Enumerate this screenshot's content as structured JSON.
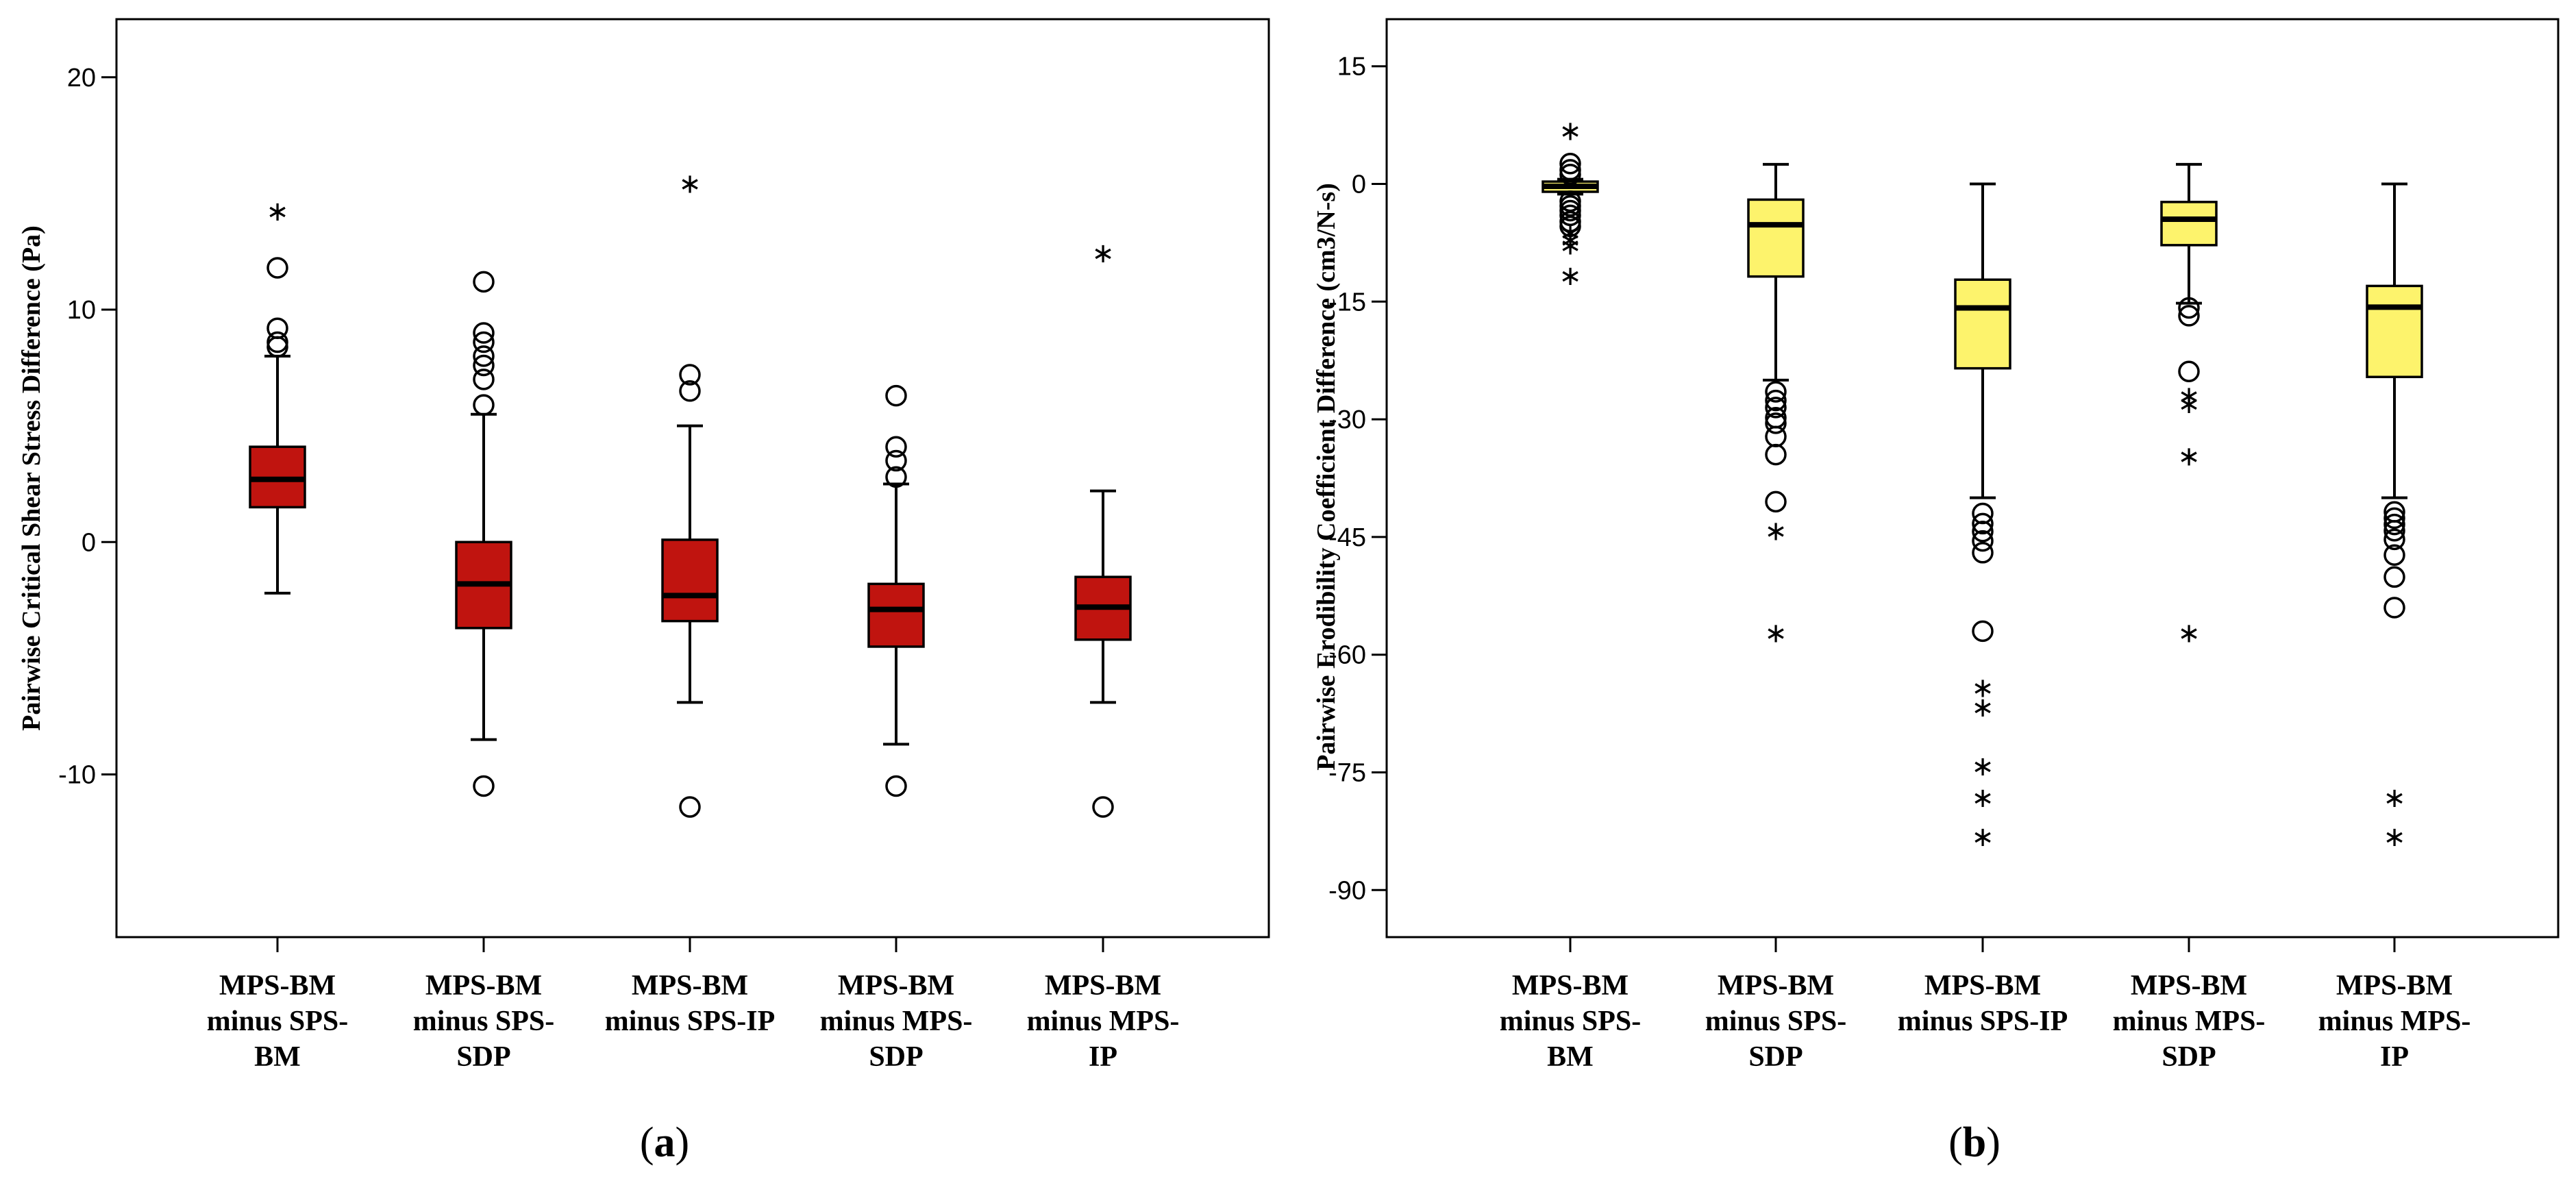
{
  "chart_data": [
    {
      "type": "box",
      "panel_label": "(a)",
      "panel_letter": "a",
      "ylabel": "Pairwise Critical Shear Stress Difference (Pa)",
      "ylim": [
        -17,
        22.5
      ],
      "yticks": [
        20,
        10,
        0,
        -10
      ],
      "ytick_labels": [
        "20",
        "10",
        "0",
        "-10"
      ],
      "box_color": "#c0140f",
      "categories": [
        [
          "MPS-BM",
          "minus SPS-",
          "BM"
        ],
        [
          "MPS-BM",
          "minus SPS-",
          "SDP"
        ],
        [
          "MPS-BM",
          "minus SPS-IP"
        ],
        [
          "MPS-BM",
          "minus MPS-",
          "SDP"
        ],
        [
          "MPS-BM",
          "minus MPS-",
          "IP"
        ]
      ],
      "boxes": [
        {
          "q1": 1.5,
          "median": 2.7,
          "q3": 4.1,
          "whisker_low": -2.2,
          "whisker_high": 8.0,
          "outliers": [
            8.4,
            8.6,
            9.2,
            11.8
          ],
          "extremes": [
            14.3
          ]
        },
        {
          "q1": -3.7,
          "median": -1.8,
          "q3": 0.0,
          "whisker_low": -8.5,
          "whisker_high": 5.5,
          "outliers": [
            5.9,
            7.0,
            7.6,
            8.0,
            8.6,
            9.0,
            11.2,
            -10.5
          ],
          "extremes": []
        },
        {
          "q1": -3.4,
          "median": -2.3,
          "q3": 0.1,
          "whisker_low": -6.9,
          "whisker_high": 5.0,
          "outliers": [
            6.5,
            7.2,
            -11.4
          ],
          "extremes": [
            15.5
          ]
        },
        {
          "q1": -4.5,
          "median": -2.9,
          "q3": -1.8,
          "whisker_low": -8.7,
          "whisker_high": 2.5,
          "outliers": [
            2.8,
            3.5,
            4.1,
            6.3,
            -10.5
          ],
          "extremes": []
        },
        {
          "q1": -4.2,
          "median": -2.8,
          "q3": -1.5,
          "whisker_low": -6.9,
          "whisker_high": 2.2,
          "outliers": [
            -11.4
          ],
          "extremes": [
            12.5
          ]
        }
      ]
    },
    {
      "type": "box",
      "panel_label": "(b)",
      "panel_letter": "b",
      "ylabel": "Pairwise Erodibility Coefficient Difference (cm3/N-s)",
      "ylim": [
        -96,
        21
      ],
      "yticks": [
        15,
        0,
        -15,
        -30,
        -45,
        -60,
        -75,
        -90
      ],
      "ytick_labels": [
        "15",
        "0",
        "-15",
        "-30",
        "-45",
        "-60",
        "-75",
        "-90"
      ],
      "box_color": "#fdf36c",
      "categories": [
        [
          "MPS-BM",
          "minus SPS-",
          "BM"
        ],
        [
          "MPS-BM",
          "minus SPS-",
          "SDP"
        ],
        [
          "MPS-BM",
          "minus SPS-IP"
        ],
        [
          "MPS-BM",
          "minus MPS-",
          "SDP"
        ],
        [
          "MPS-BM",
          "minus MPS-",
          "IP"
        ]
      ],
      "boxes": [
        {
          "q1": -1.0,
          "median": -0.3,
          "q3": 0.3,
          "whisker_low": -1.3,
          "whisker_high": 0.6,
          "outliers": [
            2.6,
            1.8,
            1.2,
            -2.2,
            -2.8,
            -3.4,
            -4.0,
            -4.8,
            -5.4
          ],
          "extremes": [
            7.0,
            -6.0,
            -6.9,
            -7.6,
            -11.5
          ]
        },
        {
          "q1": -11.8,
          "median": -5.2,
          "q3": -2.0,
          "whisker_low": -25.0,
          "whisker_high": 2.5,
          "outliers": [
            -26.5,
            -27.6,
            -28.5,
            -29.8,
            -30.5,
            -32.2,
            -34.5,
            -40.5
          ],
          "extremes": [
            -44.0,
            -57.0
          ]
        },
        {
          "q1": -23.5,
          "median": -15.8,
          "q3": -12.2,
          "whisker_low": -40.0,
          "whisker_high": 0.0,
          "outliers": [
            -42.0,
            -43.3,
            -44.3,
            -45.5,
            -47.0,
            -57.0
          ],
          "extremes": [
            -64.0,
            -66.5,
            -74.0,
            -78.0,
            -83.0
          ]
        },
        {
          "q1": -7.8,
          "median": -4.5,
          "q3": -2.3,
          "whisker_low": -15.2,
          "whisker_high": 2.5,
          "outliers": [
            -15.8,
            -16.8,
            -23.9
          ],
          "extremes": [
            -26.8,
            -27.8,
            -34.5,
            -57.0
          ]
        },
        {
          "q1": -24.6,
          "median": -15.7,
          "q3": -13.0,
          "whisker_low": -40.0,
          "whisker_high": 0.0,
          "outliers": [
            -41.8,
            -42.6,
            -43.4,
            -44.2,
            -45.3,
            -47.3,
            -50.1,
            -54.0
          ],
          "extremes": [
            -78.0,
            -83.0
          ]
        }
      ]
    }
  ]
}
